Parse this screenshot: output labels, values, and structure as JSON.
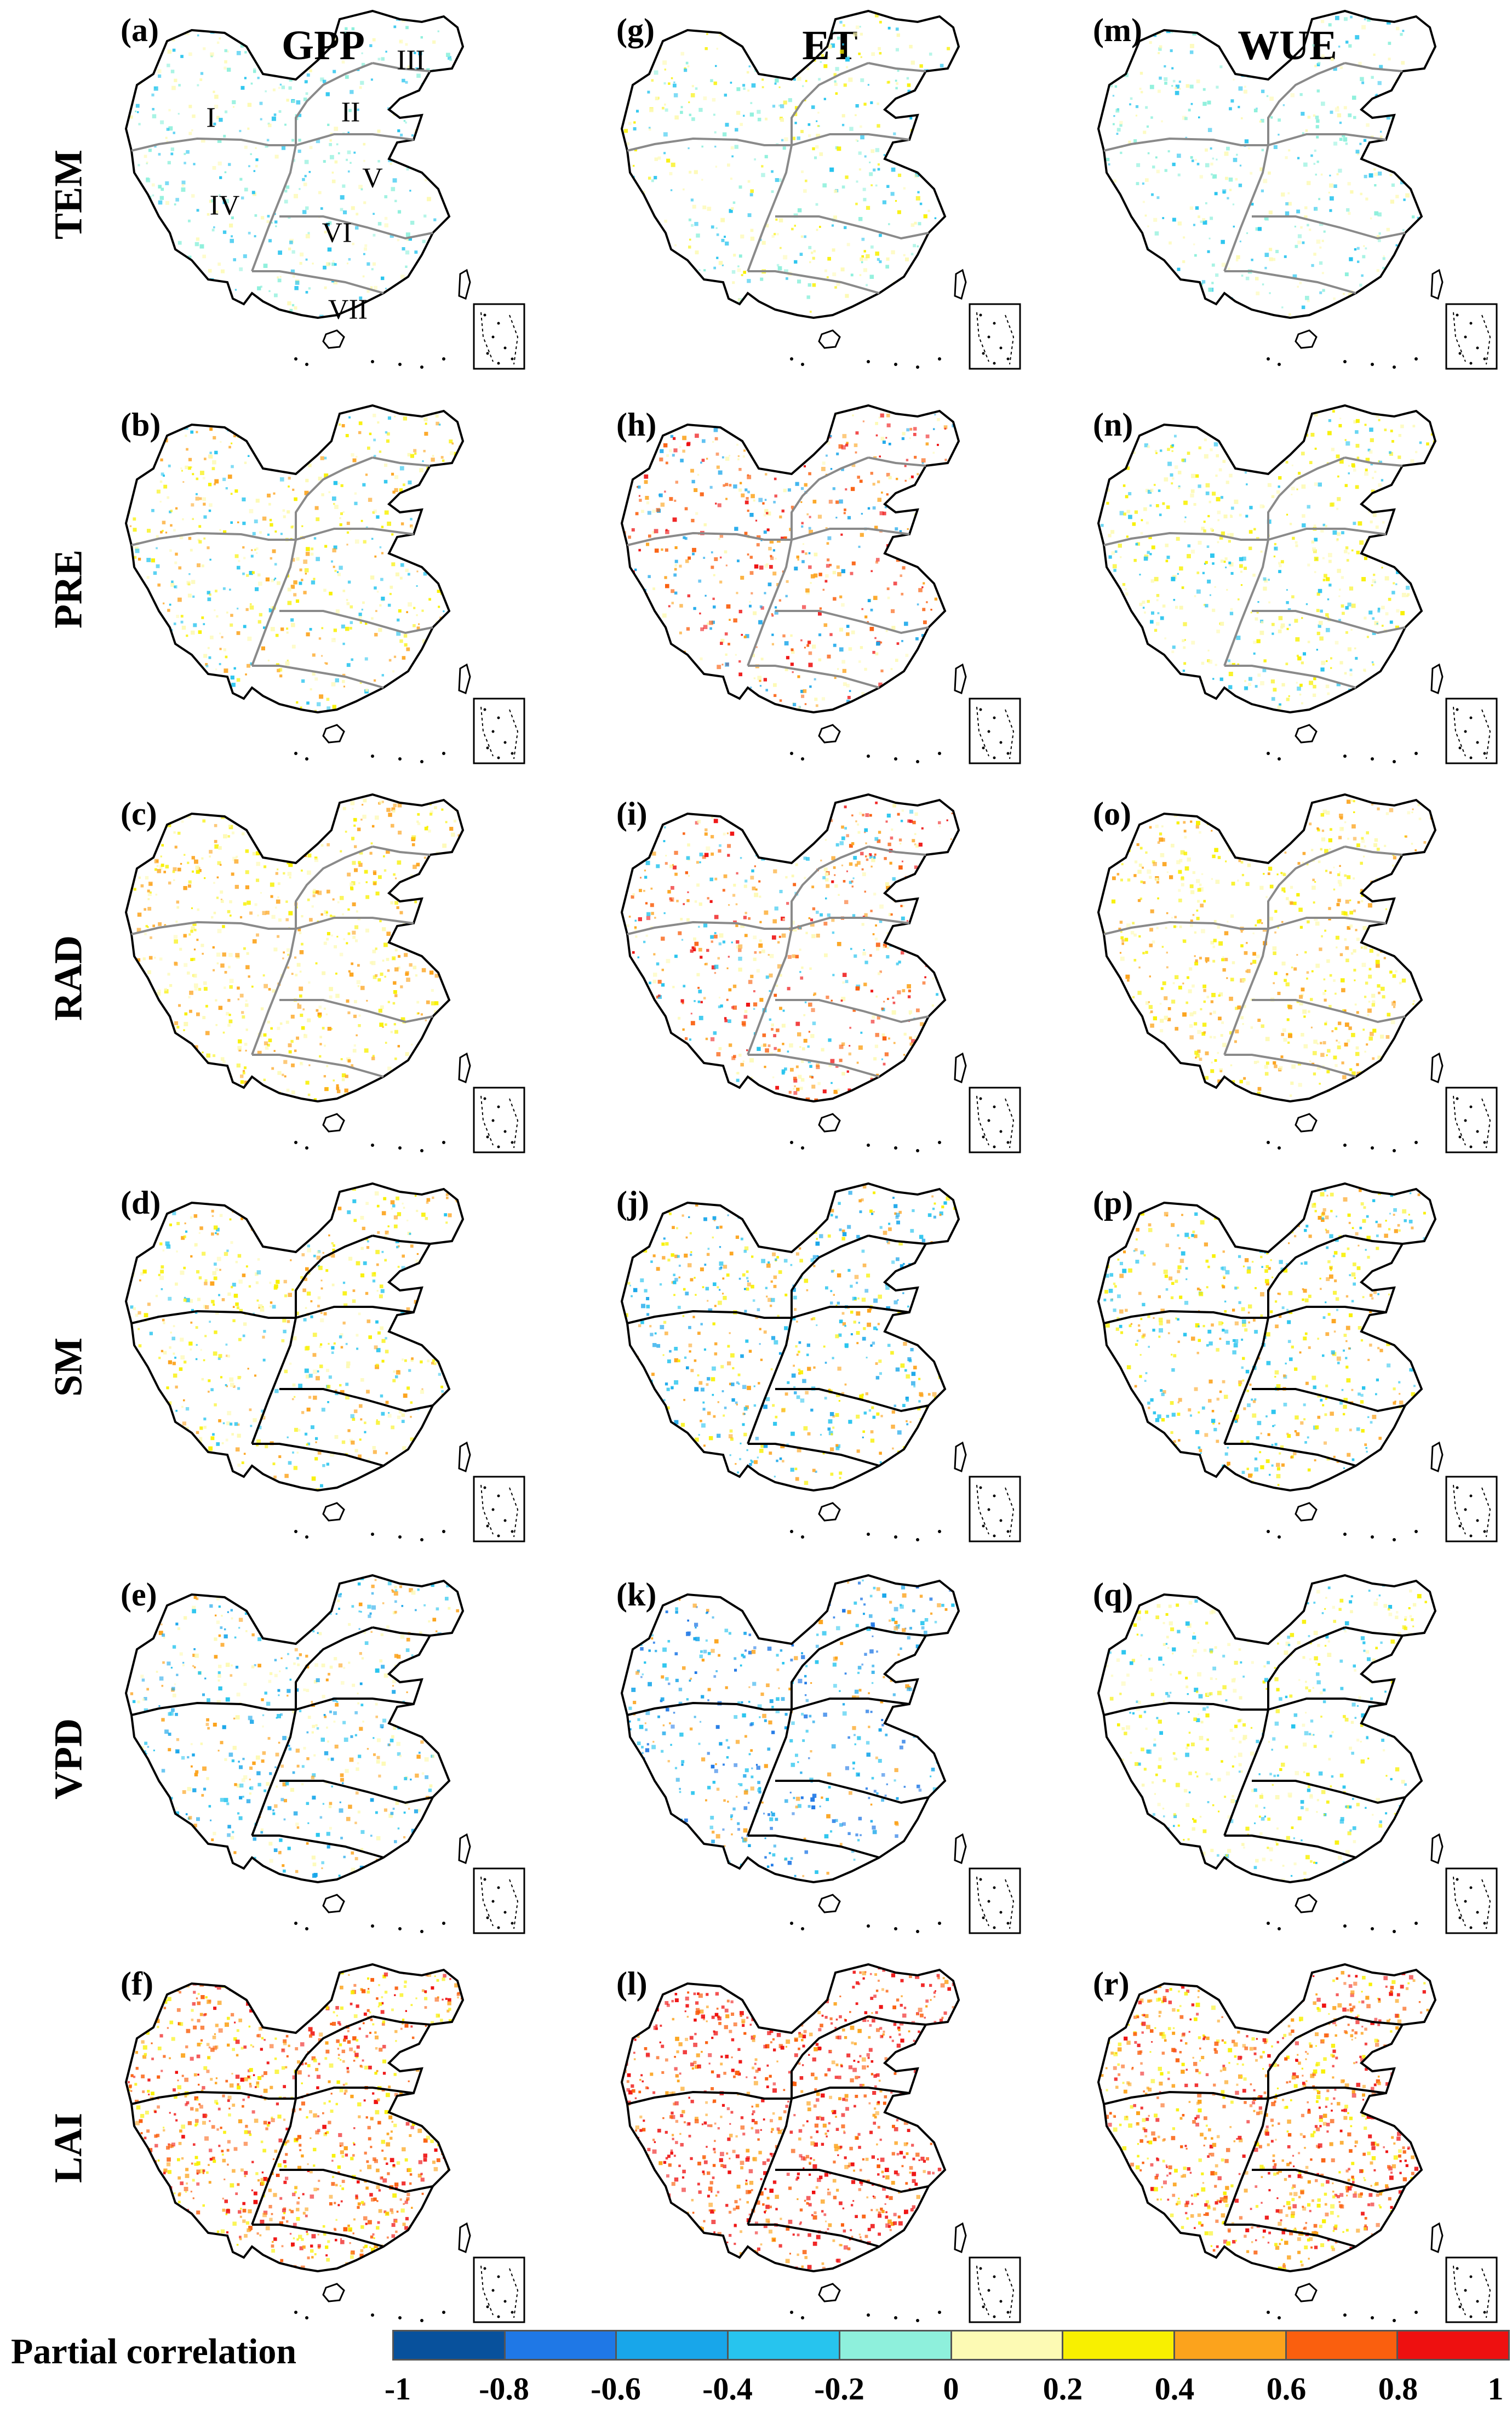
{
  "columns": [
    "GPP",
    "ET",
    "WUE"
  ],
  "rows": [
    "TEM",
    "PRE",
    "RAD",
    "SM",
    "VPD",
    "LAI"
  ],
  "panel_labels": [
    [
      "(a)",
      "(g)",
      "(m)"
    ],
    [
      "(b)",
      "(h)",
      "(n)"
    ],
    [
      "(c)",
      "(i)",
      "(o)"
    ],
    [
      "(d)",
      "(j)",
      "(p)"
    ],
    [
      "(e)",
      "(k)",
      "(q)"
    ],
    [
      "(f)",
      "(l)",
      "(r)"
    ]
  ],
  "region_labels": [
    "I",
    "II",
    "III",
    "IV",
    "V",
    "VI",
    "VII"
  ],
  "legend": {
    "title": "Partial correlation",
    "ticks": [
      "-1",
      "-0.8",
      "-0.6",
      "-0.4",
      "-0.2",
      "0",
      "0.2",
      "0.4",
      "0.6",
      "0.8",
      "1"
    ],
    "colors": [
      "#08519c",
      "#1f78e6",
      "#18a6ea",
      "#27c4ee",
      "#8ef0dc",
      "#fdfab4",
      "#f8f000",
      "#fca31c",
      "#fa5f0e",
      "#ee1010"
    ]
  },
  "map_colors": {
    "outline": "#000000",
    "region_boundary": "#8a8a8a",
    "background": "#ffffff"
  },
  "dominant_pattern": {
    "TEM": {
      "GPP": "weak mixed, light green-blue",
      "ET": "positive yellow-green in west and north-east",
      "WUE": "weak light blue-green"
    },
    "PRE": {
      "GPP": "positive north, negative south-west",
      "ET": "strong positive west and north, negative centre",
      "WUE": "weak mixed"
    },
    "RAD": {
      "GPP": "positive south",
      "ET": "strong positive south and north-east",
      "WUE": "weak positive"
    },
    "SM": {
      "GPP": "weak positive",
      "ET": "positive north, negative south",
      "WUE": "weak positive"
    },
    "VPD": {
      "GPP": "positive Tibetan, negative east",
      "ET": "negative east",
      "WUE": "weak mixed"
    },
    "LAI": {
      "GPP": "strong positive east",
      "ET": "very strong positive east",
      "WUE": "positive north and east"
    }
  }
}
